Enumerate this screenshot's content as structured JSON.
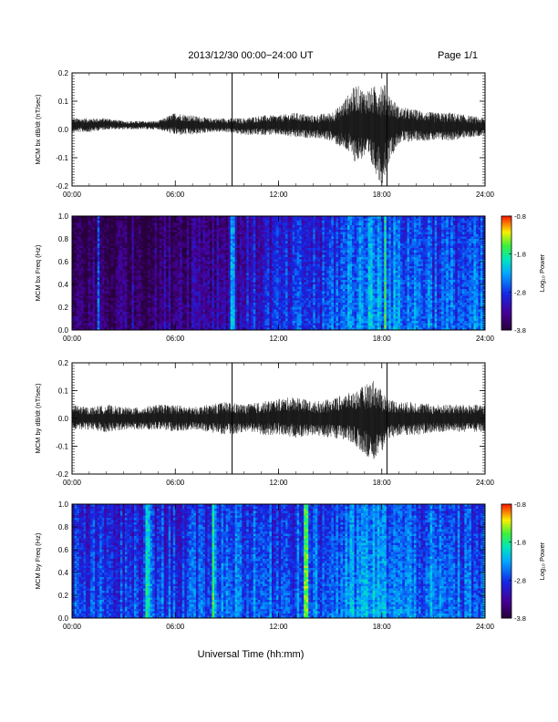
{
  "header": {
    "date_range": "2013/12/30  00:00−24:00 UT",
    "page": "Page 1/1"
  },
  "footer": {
    "xlabel": "Universal Time (hh:mm)"
  },
  "chart_data": [
    {
      "type": "line",
      "ylabel": "MCM bx dB/dt (nT/sec)",
      "ylim": [
        -0.2,
        0.2
      ],
      "yticks": [
        "-0.2",
        "-0.1",
        "0.0",
        "0.1",
        "0.2"
      ],
      "xlim": [
        0,
        24
      ],
      "xticks": [
        "00:00",
        "06:00",
        "12:00",
        "18:00",
        "24:00"
      ],
      "x_units": "hours UT",
      "envelope": {
        "x": [
          0,
          1,
          2,
          3,
          4,
          5,
          6,
          7,
          8,
          9,
          10,
          11,
          12,
          13,
          14,
          15,
          15.5,
          16,
          16.5,
          17,
          17.5,
          18,
          18.5,
          19,
          20,
          21,
          22,
          23,
          24
        ],
        "max": [
          0.04,
          0.04,
          0.04,
          0.03,
          0.03,
          0.03,
          0.06,
          0.05,
          0.04,
          0.04,
          0.04,
          0.05,
          0.05,
          0.06,
          0.05,
          0.06,
          0.08,
          0.12,
          0.16,
          0.14,
          0.15,
          0.18,
          0.12,
          0.08,
          0.07,
          0.06,
          0.06,
          0.05,
          0.04
        ],
        "min": [
          -0.01,
          -0.01,
          0.0,
          0.0,
          0.0,
          0.0,
          -0.02,
          -0.02,
          -0.01,
          -0.01,
          -0.02,
          -0.02,
          -0.02,
          -0.03,
          -0.03,
          -0.04,
          -0.06,
          -0.08,
          -0.12,
          -0.1,
          -0.14,
          -0.2,
          -0.1,
          -0.05,
          -0.04,
          -0.04,
          -0.04,
          -0.03,
          -0.02
        ]
      },
      "markers_x": [
        9.3,
        18.3
      ]
    },
    {
      "type": "heatmap",
      "ylabel": "MCM bx Freq (Hz)",
      "ylim": [
        0.0,
        1.0
      ],
      "yticks": [
        "0.0",
        "0.2",
        "0.4",
        "0.6",
        "0.8",
        "1.0"
      ],
      "xlim": [
        0,
        24
      ],
      "xticks": [
        "00:00",
        "06:00",
        "12:00",
        "18:00",
        "24:00"
      ],
      "colorbar": {
        "label": "Log₁₀ Power",
        "range": [
          -3.8,
          -0.8
        ],
        "ticks": [
          "-0.8",
          "-1.8",
          "-2.8",
          "-3.8"
        ]
      },
      "level_by_hour": [
        -3.6,
        -3.6,
        -3.6,
        -3.5,
        -3.6,
        -3.5,
        -3.4,
        -3.3,
        -3.3,
        -3.2,
        -3.1,
        -3.0,
        -3.0,
        -2.9,
        -2.9,
        -2.7,
        -2.5,
        -2.4,
        -2.5,
        -2.6,
        -2.6,
        -2.7,
        -2.7,
        -2.7
      ],
      "bright_lines_x": [
        1.5,
        9.3,
        18.2
      ]
    },
    {
      "type": "line",
      "ylabel": "MCM by dB/dt (nT/sec)",
      "ylim": [
        -0.2,
        0.2
      ],
      "yticks": [
        "-0.2",
        "-0.1",
        "0.0",
        "0.1",
        "0.2"
      ],
      "xlim": [
        0,
        24
      ],
      "xticks": [
        "00:00",
        "06:00",
        "12:00",
        "18:00",
        "24:00"
      ],
      "x_units": "hours UT",
      "envelope": {
        "x": [
          0,
          1,
          2,
          3,
          4,
          5,
          6,
          7,
          8,
          9,
          10,
          11,
          12,
          13,
          14,
          15,
          16,
          16.5,
          17,
          17.5,
          18,
          18.5,
          19,
          20,
          21,
          22,
          23,
          24
        ],
        "max": [
          0.05,
          0.04,
          0.05,
          0.04,
          0.04,
          0.05,
          0.05,
          0.04,
          0.05,
          0.06,
          0.05,
          0.06,
          0.07,
          0.08,
          0.06,
          0.07,
          0.09,
          0.1,
          0.12,
          0.14,
          0.1,
          0.07,
          0.06,
          0.06,
          0.05,
          0.05,
          0.05,
          0.05
        ],
        "min": [
          -0.04,
          -0.04,
          -0.05,
          -0.04,
          -0.04,
          -0.04,
          -0.05,
          -0.04,
          -0.05,
          -0.06,
          -0.05,
          -0.06,
          -0.06,
          -0.07,
          -0.06,
          -0.07,
          -0.08,
          -0.1,
          -0.13,
          -0.15,
          -0.12,
          -0.07,
          -0.06,
          -0.06,
          -0.05,
          -0.05,
          -0.05,
          -0.05
        ]
      },
      "markers_x": [
        9.3,
        18.3
      ]
    },
    {
      "type": "heatmap",
      "ylabel": "MCM by Freq (Hz)",
      "ylim": [
        0.0,
        1.0
      ],
      "yticks": [
        "0.0",
        "0.2",
        "0.4",
        "0.6",
        "0.8",
        "1.0"
      ],
      "xlim": [
        0,
        24
      ],
      "xticks": [
        "00:00",
        "06:00",
        "12:00",
        "18:00",
        "24:00"
      ],
      "colorbar": {
        "label": "Log₁₀ Power",
        "range": [
          -3.8,
          -0.8
        ],
        "ticks": [
          "-0.8",
          "-1.8",
          "-2.8",
          "-3.8"
        ]
      },
      "level_by_hour": [
        -2.9,
        -2.9,
        -2.9,
        -2.9,
        -2.8,
        -2.8,
        -2.8,
        -2.8,
        -2.6,
        -2.6,
        -2.7,
        -2.7,
        -2.7,
        -2.6,
        -2.7,
        -2.6,
        -2.5,
        -2.4,
        -2.5,
        -2.6,
        -2.6,
        -2.7,
        -2.7,
        -2.7
      ],
      "bright_lines_x": [
        4.4,
        8.2,
        13.6
      ]
    }
  ]
}
